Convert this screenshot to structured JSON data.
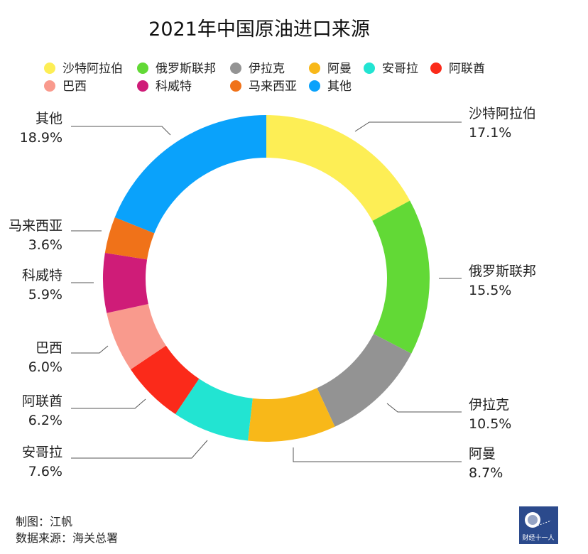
{
  "chart_data": {
    "type": "pie",
    "variant": "donut",
    "title": "2021年中国原油进口来源",
    "legend_position": "top",
    "unit": "%",
    "slices": [
      {
        "name": "沙特阿拉伯",
        "value": 17.1,
        "label": "17.1%",
        "color": "#fdee55"
      },
      {
        "name": "俄罗斯联邦",
        "value": 15.5,
        "label": "15.5%",
        "color": "#62d936"
      },
      {
        "name": "伊拉克",
        "value": 10.5,
        "label": "10.5%",
        "color": "#939393"
      },
      {
        "name": "阿曼",
        "value": 8.7,
        "label": "8.7%",
        "color": "#f8b819"
      },
      {
        "name": "安哥拉",
        "value": 7.6,
        "label": "7.6%",
        "color": "#22e4d2"
      },
      {
        "name": "阿联酋",
        "value": 6.2,
        "label": "6.2%",
        "color": "#fb2a1a"
      },
      {
        "name": "巴西",
        "value": 6.0,
        "label": "6.0%",
        "color": "#f99a8d"
      },
      {
        "name": "科威特",
        "value": 5.9,
        "label": "5.9%",
        "color": "#cf1c78"
      },
      {
        "name": "马来西亚",
        "value": 3.6,
        "label": "3.6%",
        "color": "#f07219"
      },
      {
        "name": "其他",
        "value": 18.9,
        "label": "18.9%",
        "color": "#0aa2fb"
      }
    ]
  },
  "footer": {
    "author": "制图：江帆",
    "source": "数据来源：海关总署"
  },
  "logo": {
    "text": "财经十一人",
    "color": "#2b4a8c"
  }
}
